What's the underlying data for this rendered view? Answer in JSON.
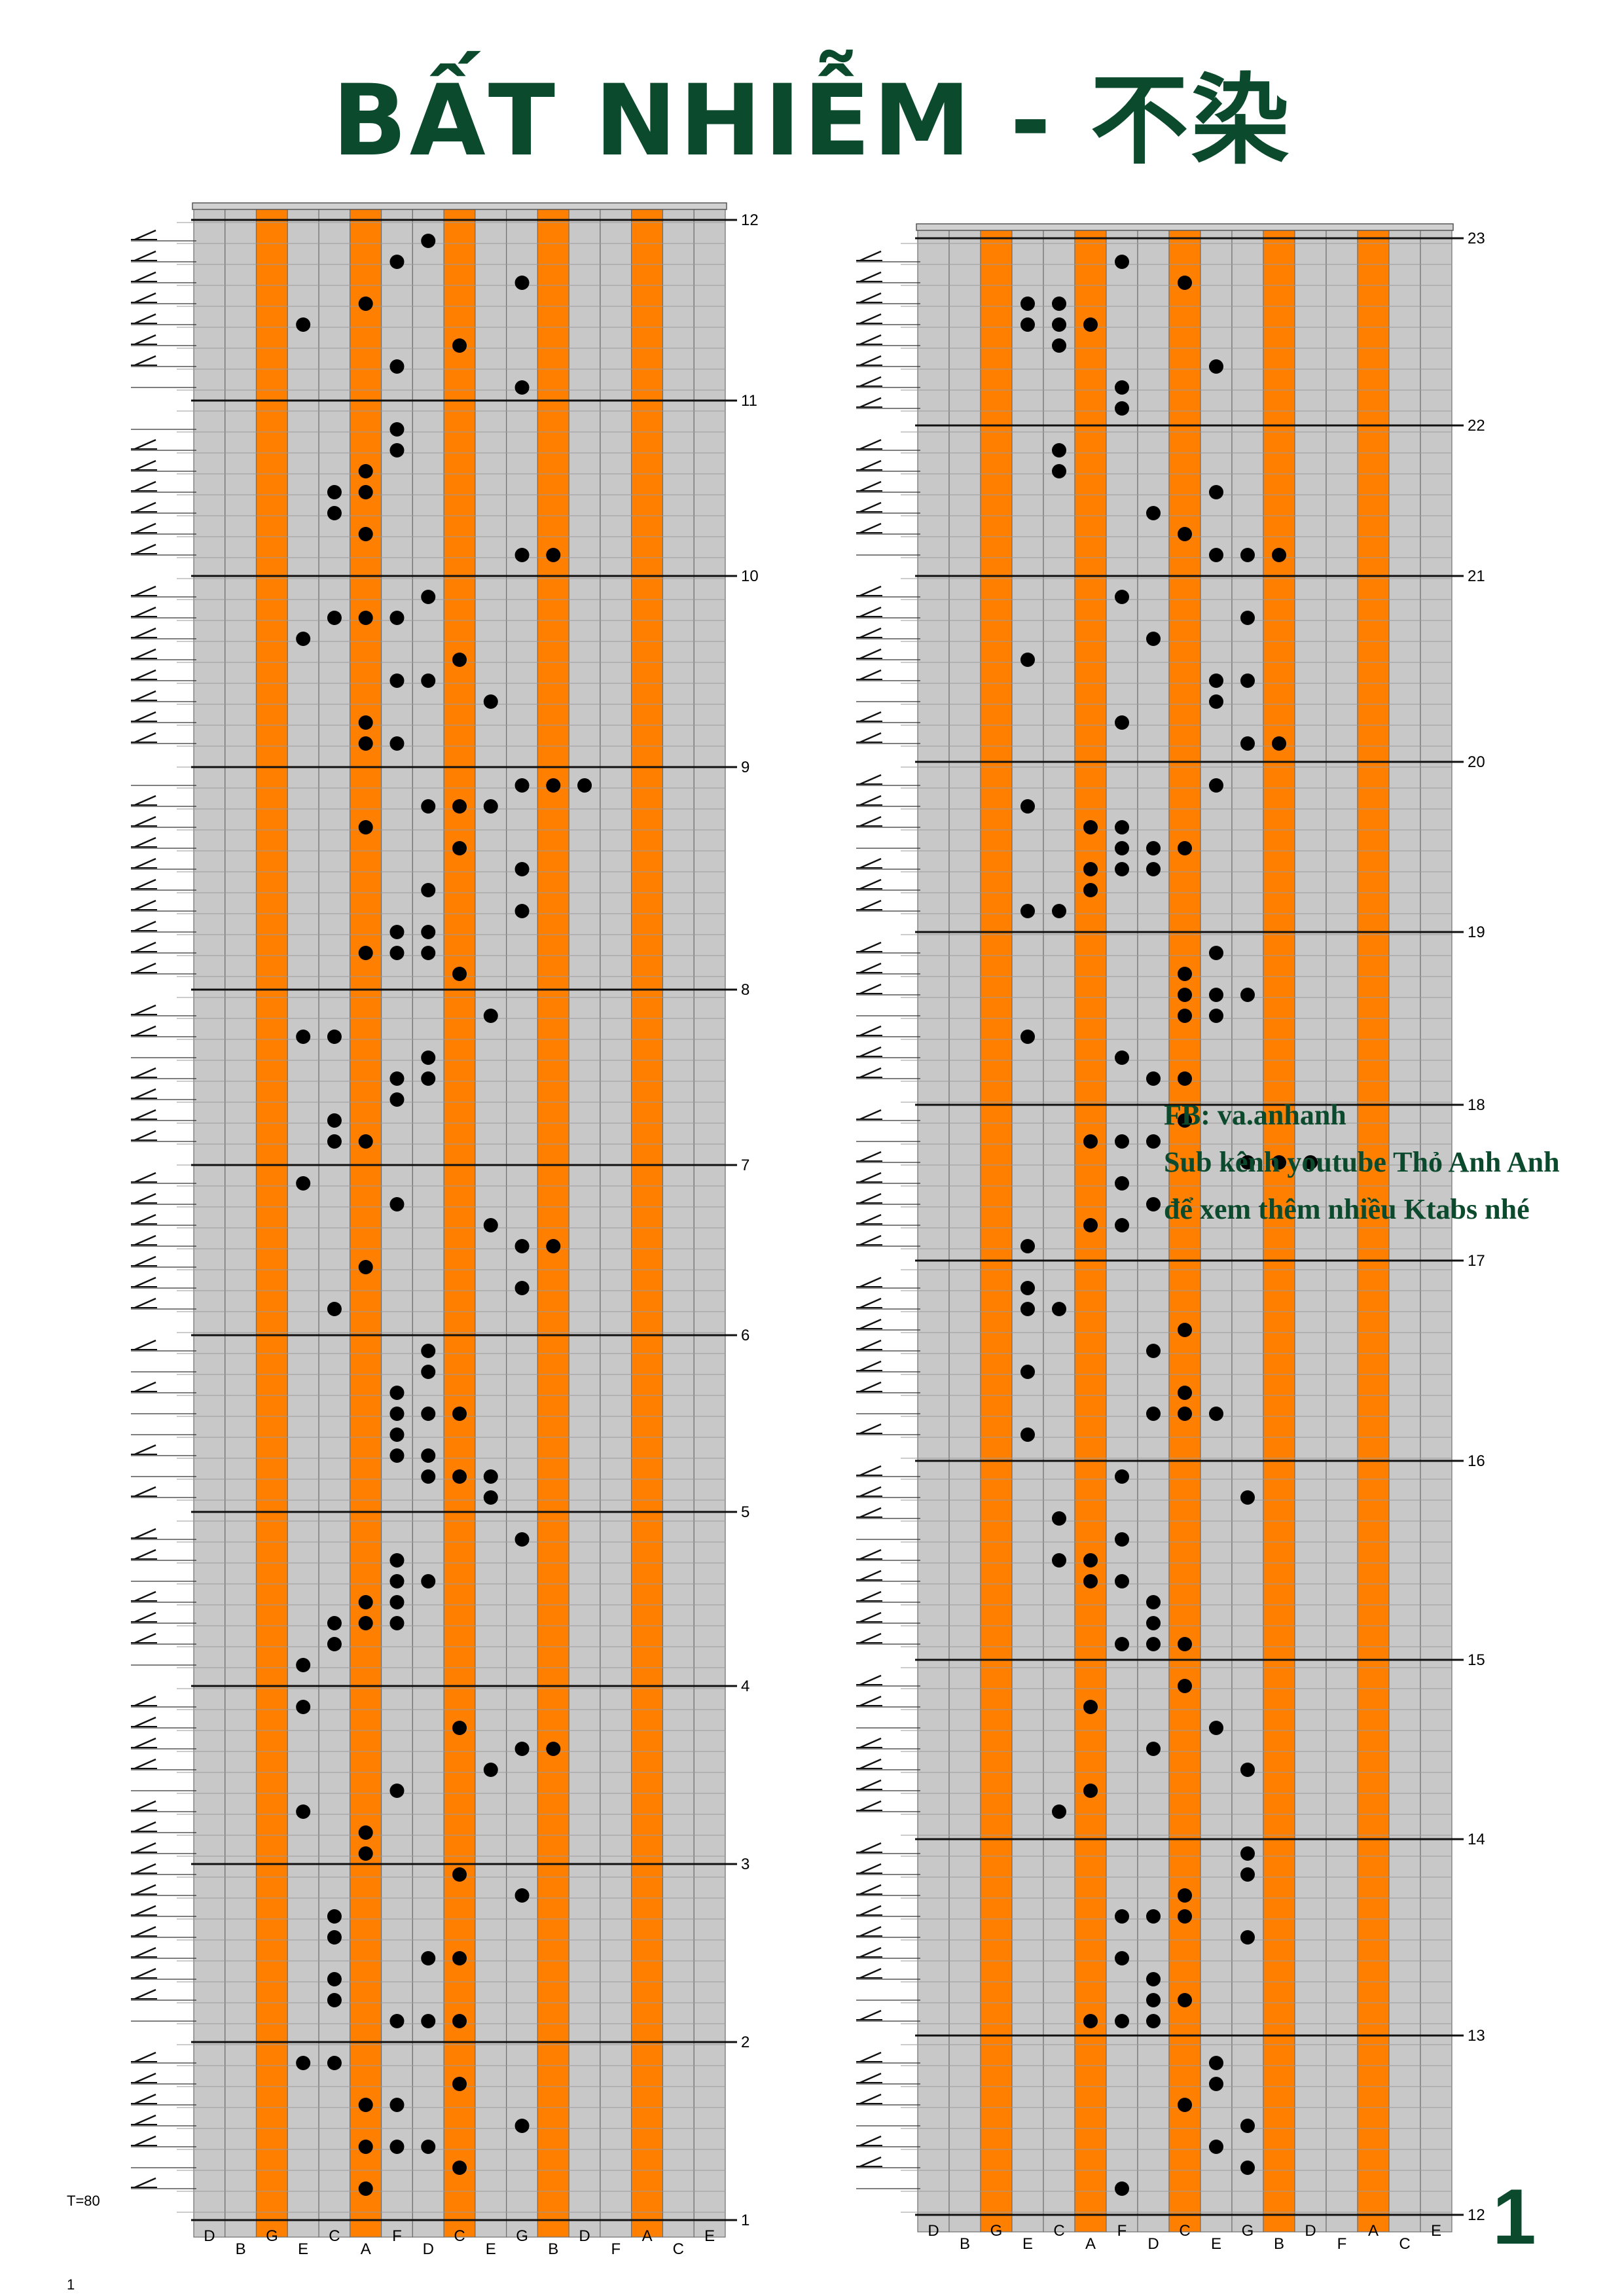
{
  "title": "BẤT NHIỄM - 不染",
  "tempo": "T=80",
  "page_number": "1",
  "footer_number": "1",
  "credits": [
    "FB: va.anhanh",
    "Sub kênh youtube Thỏ Anh Anh",
    "để xem thêm nhiều Ktabs nhé"
  ],
  "colors": {
    "title": "#0c4a2e",
    "highlight_tine": "#ff7f00",
    "tine": "#c8c8c8",
    "note": "#000000"
  },
  "tine_labels": [
    "D",
    "B",
    "G",
    "E",
    "C",
    "A",
    "F",
    "D",
    "C",
    "E",
    "G",
    "B",
    "D",
    "F",
    "A",
    "C",
    "E"
  ],
  "highlighted_tines": [
    "G",
    "A",
    "C",
    "B",
    "A"
  ],
  "columns": [
    {
      "measures_bottom_to_top": [
        "1",
        "2",
        "3",
        "4",
        "5",
        "6",
        "7",
        "8",
        "9",
        "10",
        "11",
        "12"
      ]
    },
    {
      "measures_bottom_to_top": [
        "12",
        "13",
        "14",
        "15",
        "16",
        "17",
        "18",
        "19",
        "20",
        "21",
        "22",
        "23"
      ]
    }
  ]
}
